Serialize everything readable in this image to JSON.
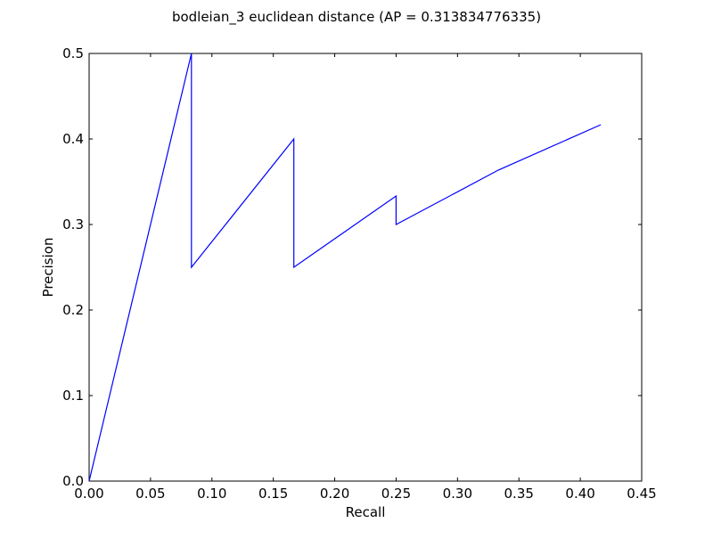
{
  "chart_data": {
    "type": "line",
    "title": "bodleian_3 euclidean distance  (AP = 0.313834776335)",
    "xlabel": "Recall",
    "ylabel": "Precision",
    "xlim": [
      0.0,
      0.45
    ],
    "ylim": [
      0.0,
      0.5
    ],
    "xticks": [
      "0.00",
      "0.05",
      "0.10",
      "0.15",
      "0.20",
      "0.25",
      "0.30",
      "0.35",
      "0.40",
      "0.45"
    ],
    "yticks": [
      "0.0",
      "0.1",
      "0.2",
      "0.3",
      "0.4",
      "0.5"
    ],
    "grid": false,
    "line_color": "#0000ff",
    "series": [
      {
        "x": [
          0.0,
          0.0833,
          0.0833,
          0.1667,
          0.1667,
          0.25,
          0.25,
          0.3333,
          0.4167
        ],
        "y": [
          0.0,
          0.5,
          0.25,
          0.4,
          0.25,
          0.3333,
          0.3,
          0.3636,
          0.4167
        ]
      }
    ]
  }
}
